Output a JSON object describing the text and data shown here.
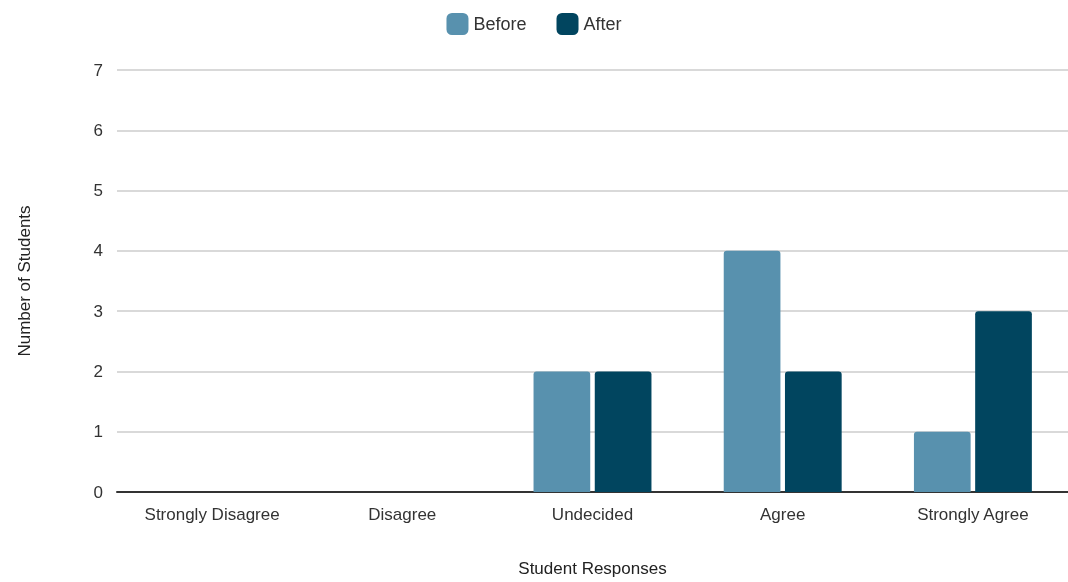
{
  "chart_data": {
    "type": "bar",
    "xlabel": "Student Responses",
    "ylabel": "Number of Students",
    "categories": [
      "Strongly Disagree",
      "Disagree",
      "Undecided",
      "Agree",
      "Strongly Agree"
    ],
    "series": [
      {
        "name": "Before",
        "color": "#5891ae",
        "values": [
          0,
          0,
          2,
          4,
          1
        ]
      },
      {
        "name": "After",
        "color": "#01455f",
        "values": [
          0,
          0,
          2,
          2,
          3
        ]
      }
    ],
    "ylim": [
      0,
      7
    ],
    "yticks": [
      0,
      1,
      2,
      3,
      4,
      5,
      6,
      7
    ],
    "grid": "y",
    "legend": "top"
  }
}
